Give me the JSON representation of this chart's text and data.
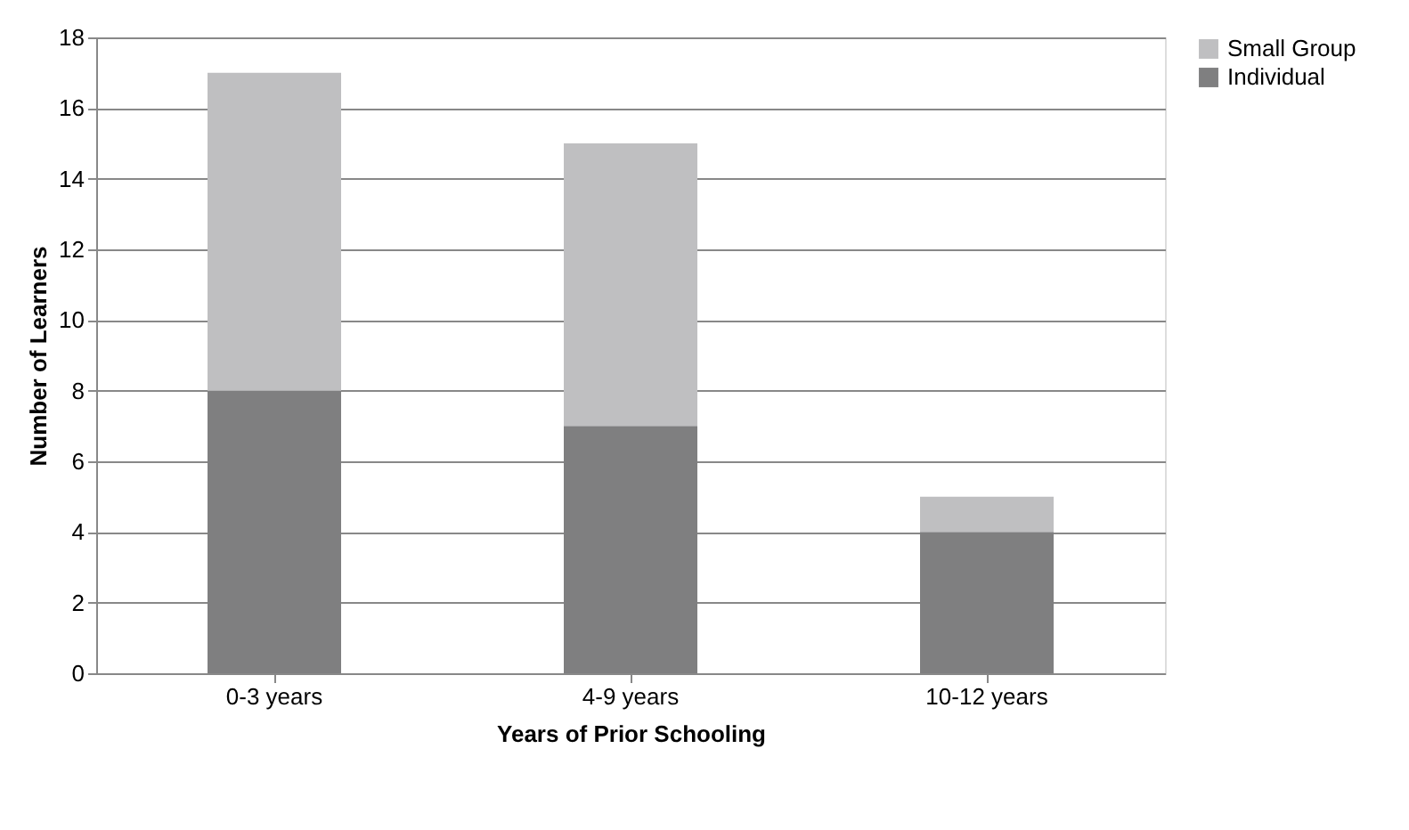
{
  "chart_data": {
    "type": "bar",
    "stacked": true,
    "xlabel": "Years of Prior Schooling",
    "ylabel": "Number of Learners",
    "categories": [
      "0-3 years",
      "4-9 years",
      "10-12 years"
    ],
    "series": [
      {
        "name": "Individual",
        "color": "#7f7f80",
        "values": [
          8,
          7,
          4
        ]
      },
      {
        "name": "Small Group",
        "color": "#bfbfc1",
        "values": [
          9,
          8,
          1
        ]
      }
    ],
    "ylim": [
      0,
      18
    ],
    "yticks": [
      0,
      2,
      4,
      6,
      8,
      10,
      12,
      14,
      16,
      18
    ],
    "grid": "y",
    "legend": "right"
  }
}
